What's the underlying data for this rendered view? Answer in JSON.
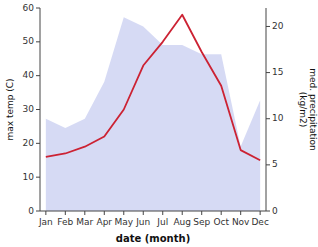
{
  "chart_data": {
    "type": "line",
    "xlabel": "date (month)",
    "ylabel": "max temp (C)",
    "y2label": "med. precipitation\n(kg/m2)",
    "categories": [
      "Jan",
      "Feb",
      "Mar",
      "Apr",
      "May",
      "Jun",
      "Jul",
      "Aug",
      "Sep",
      "Oct",
      "Nov",
      "Dec"
    ],
    "series": [
      {
        "type": "area",
        "axis": "y2",
        "color": "#c8cdf0",
        "values": [
          10,
          9,
          10,
          14,
          21,
          20,
          18,
          18,
          17,
          17,
          7,
          12
        ]
      },
      {
        "type": "line",
        "color": "#cc2233",
        "values": [
          16,
          17,
          19,
          22,
          30,
          43,
          50,
          58,
          47,
          37,
          18,
          15
        ]
      }
    ],
    "ylim": [
      0,
      60
    ],
    "yticks": [
      0,
      10,
      20,
      30,
      40,
      50,
      60
    ],
    "y2lim": [
      0,
      22
    ],
    "y2ticks": [
      0,
      5,
      10,
      15,
      20
    ],
    "grid": false
  }
}
